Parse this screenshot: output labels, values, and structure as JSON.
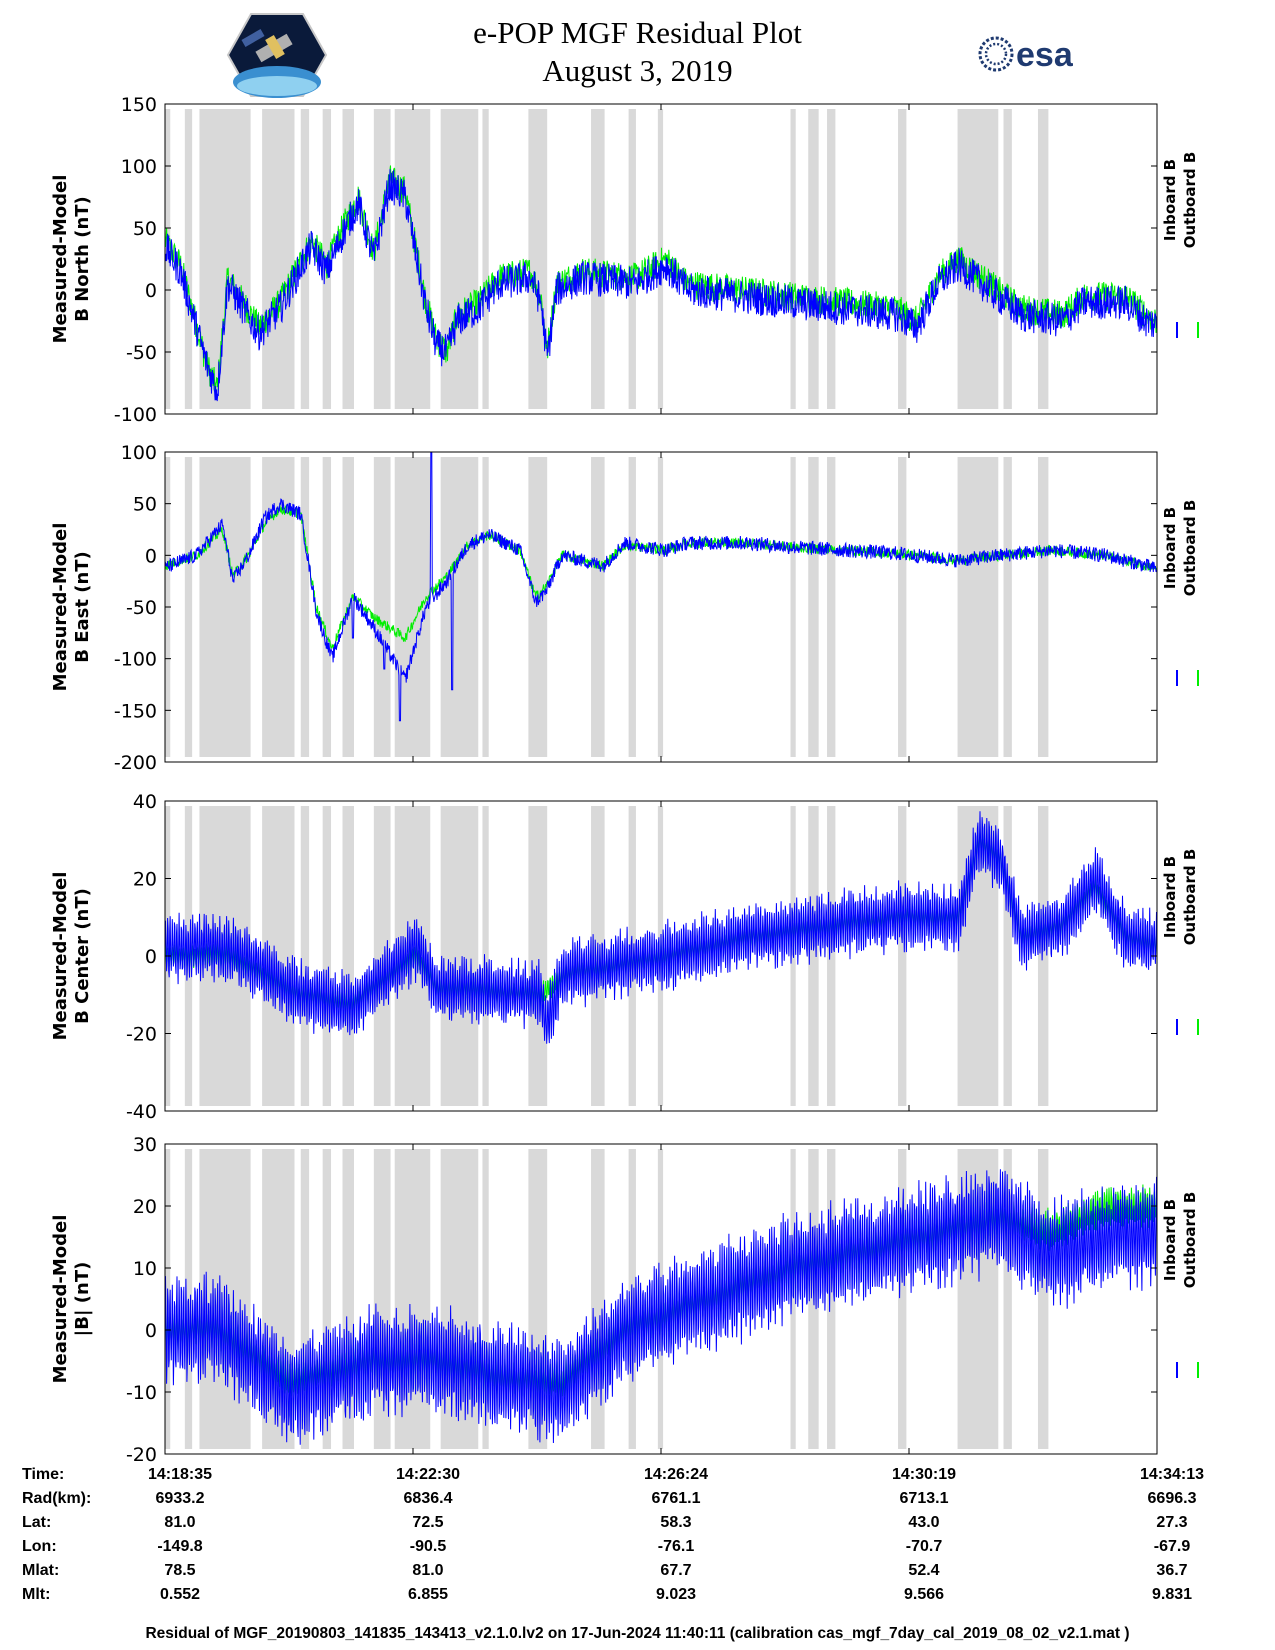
{
  "title": {
    "line1": "e-POP MGF Residual Plot",
    "line2": "August 3, 2019"
  },
  "logos": {
    "left": "cassiope-mission-logo",
    "right_text": "esa"
  },
  "colors": {
    "inboard": "#0000ff",
    "outboard": "#00ee00",
    "shade": "#d9d9d9"
  },
  "chart_data": [
    {
      "type": "line",
      "name": "north",
      "ylabel_line1": "Measured-Model",
      "ylabel_line2": "B North (nT)",
      "ylim": [
        -100,
        150
      ],
      "yticks": [
        "150",
        "100",
        "50",
        "0",
        "-50",
        "-100"
      ],
      "legend": [
        "Inboard B",
        "Outboard B"
      ],
      "series": [
        {
          "name": "Outboard B",
          "color": "#00ee00",
          "anchors": [
            [
              0,
              40
            ],
            [
              15,
              20
            ],
            [
              40,
              -60
            ],
            [
              50,
              -80
            ],
            [
              60,
              10
            ],
            [
              90,
              -30
            ],
            [
              110,
              -10
            ],
            [
              140,
              40
            ],
            [
              155,
              20
            ],
            [
              170,
              50
            ],
            [
              185,
              75
            ],
            [
              200,
              30
            ],
            [
              215,
              90
            ],
            [
              230,
              80
            ],
            [
              250,
              -10
            ],
            [
              260,
              -40
            ],
            [
              270,
              -50
            ],
            [
              280,
              -20
            ],
            [
              300,
              -10
            ],
            [
              320,
              10
            ],
            [
              350,
              15
            ],
            [
              360,
              -5
            ],
            [
              366,
              -50
            ],
            [
              375,
              5
            ],
            [
              400,
              15
            ],
            [
              450,
              10
            ],
            [
              480,
              25
            ],
            [
              500,
              5
            ],
            [
              600,
              -5
            ],
            [
              700,
              -15
            ],
            [
              720,
              -25
            ],
            [
              740,
              10
            ],
            [
              760,
              25
            ],
            [
              790,
              5
            ],
            [
              820,
              -15
            ],
            [
              860,
              -20
            ],
            [
              880,
              -5
            ],
            [
              920,
              -5
            ],
            [
              940,
              -20
            ],
            [
              950,
              -25
            ]
          ],
          "noise": 12
        },
        {
          "name": "Inboard B",
          "color": "#0000ff",
          "anchors": [
            [
              0,
              35
            ],
            [
              15,
              15
            ],
            [
              40,
              -60
            ],
            [
              50,
              -82
            ],
            [
              60,
              5
            ],
            [
              90,
              -35
            ],
            [
              110,
              -15
            ],
            [
              140,
              35
            ],
            [
              155,
              15
            ],
            [
              170,
              45
            ],
            [
              185,
              70
            ],
            [
              200,
              25
            ],
            [
              215,
              85
            ],
            [
              230,
              75
            ],
            [
              250,
              -15
            ],
            [
              260,
              -45
            ],
            [
              270,
              -50
            ],
            [
              280,
              -25
            ],
            [
              300,
              -15
            ],
            [
              320,
              5
            ],
            [
              350,
              10
            ],
            [
              360,
              -10
            ],
            [
              366,
              -55
            ],
            [
              375,
              0
            ],
            [
              400,
              10
            ],
            [
              450,
              5
            ],
            [
              480,
              20
            ],
            [
              500,
              0
            ],
            [
              600,
              -10
            ],
            [
              700,
              -20
            ],
            [
              720,
              -30
            ],
            [
              740,
              5
            ],
            [
              760,
              20
            ],
            [
              790,
              0
            ],
            [
              820,
              -20
            ],
            [
              860,
              -25
            ],
            [
              880,
              -10
            ],
            [
              920,
              -10
            ],
            [
              940,
              -25
            ],
            [
              950,
              -28
            ]
          ],
          "noise": 14
        }
      ]
    },
    {
      "type": "line",
      "name": "east",
      "ylabel_line1": "Measured-Model",
      "ylabel_line2": "B East (nT)",
      "ylim": [
        -200,
        100
      ],
      "yticks": [
        "100",
        "50",
        "0",
        "-50",
        "-100",
        "-150",
        "-200"
      ],
      "legend": [
        "Inboard B",
        "Outboard B"
      ],
      "series": [
        {
          "name": "Outboard B",
          "color": "#00ee00",
          "anchors": [
            [
              0,
              -10
            ],
            [
              30,
              0
            ],
            [
              55,
              25
            ],
            [
              65,
              -20
            ],
            [
              80,
              0
            ],
            [
              95,
              30
            ],
            [
              110,
              45
            ],
            [
              130,
              40
            ],
            [
              145,
              -50
            ],
            [
              160,
              -90
            ],
            [
              180,
              -40
            ],
            [
              200,
              -60
            ],
            [
              230,
              -80
            ],
            [
              250,
              -40
            ],
            [
              270,
              -20
            ],
            [
              290,
              10
            ],
            [
              310,
              20
            ],
            [
              340,
              5
            ],
            [
              355,
              -40
            ],
            [
              365,
              -30
            ],
            [
              380,
              0
            ],
            [
              420,
              -10
            ],
            [
              440,
              10
            ],
            [
              480,
              5
            ],
            [
              500,
              12
            ],
            [
              560,
              12
            ],
            [
              600,
              8
            ],
            [
              700,
              2
            ],
            [
              760,
              -5
            ],
            [
              800,
              0
            ],
            [
              850,
              5
            ],
            [
              900,
              0
            ],
            [
              940,
              -10
            ],
            [
              950,
              -12
            ]
          ],
          "noise": 5
        },
        {
          "name": "Inboard B",
          "color": "#0000ff",
          "anchors": [
            [
              0,
              -12
            ],
            [
              30,
              0
            ],
            [
              55,
              30
            ],
            [
              65,
              -25
            ],
            [
              80,
              0
            ],
            [
              95,
              35
            ],
            [
              110,
              50
            ],
            [
              130,
              40
            ],
            [
              145,
              -55
            ],
            [
              160,
              -100
            ],
            [
              180,
              -40
            ],
            [
              200,
              -70
            ],
            [
              230,
              -120
            ],
            [
              250,
              -50
            ],
            [
              270,
              -25
            ],
            [
              290,
              10
            ],
            [
              310,
              20
            ],
            [
              340,
              5
            ],
            [
              355,
              -45
            ],
            [
              365,
              -35
            ],
            [
              380,
              0
            ],
            [
              420,
              -10
            ],
            [
              440,
              12
            ],
            [
              480,
              5
            ],
            [
              500,
              12
            ],
            [
              560,
              12
            ],
            [
              600,
              8
            ],
            [
              700,
              2
            ],
            [
              760,
              -5
            ],
            [
              800,
              0
            ],
            [
              850,
              5
            ],
            [
              900,
              0
            ],
            [
              940,
              -10
            ],
            [
              950,
              -14
            ]
          ],
          "noise": 7,
          "spikes": [
            [
              225,
              -160
            ],
            [
              255,
              100
            ],
            [
              275,
              -130
            ],
            [
              180,
              -80
            ],
            [
              210,
              -110
            ]
          ]
        }
      ]
    },
    {
      "type": "line",
      "name": "center",
      "ylabel_line1": "Measured-Model",
      "ylabel_line2": "B Center (nT)",
      "ylim": [
        -40,
        40
      ],
      "yticks": [
        "40",
        "20",
        "0",
        "-20",
        "-40"
      ],
      "legend": [
        "Inboard B",
        "Outboard B"
      ],
      "series": [
        {
          "name": "Outboard B",
          "color": "#00ee00",
          "anchors": [
            [
              0,
              0
            ],
            [
              60,
              0
            ],
            [
              130,
              -10
            ],
            [
              180,
              -12
            ],
            [
              240,
              0
            ],
            [
              260,
              -8
            ],
            [
              360,
              -10
            ],
            [
              380,
              -5
            ],
            [
              480,
              0
            ],
            [
              560,
              5
            ],
            [
              700,
              10
            ],
            [
              760,
              10
            ],
            [
              780,
              30
            ],
            [
              800,
              25
            ],
            [
              820,
              5
            ],
            [
              860,
              8
            ],
            [
              890,
              18
            ],
            [
              920,
              5
            ],
            [
              950,
              3
            ]
          ],
          "noise": 3
        },
        {
          "name": "Inboard B",
          "color": "#0000ff",
          "anchors": [
            [
              0,
              2
            ],
            [
              60,
              2
            ],
            [
              130,
              -10
            ],
            [
              180,
              -13
            ],
            [
              240,
              2
            ],
            [
              260,
              -8
            ],
            [
              360,
              -10
            ],
            [
              365,
              -18
            ],
            [
              380,
              -5
            ],
            [
              480,
              0
            ],
            [
              560,
              5
            ],
            [
              700,
              10
            ],
            [
              760,
              10
            ],
            [
              780,
              30
            ],
            [
              800,
              25
            ],
            [
              820,
              5
            ],
            [
              860,
              8
            ],
            [
              890,
              20
            ],
            [
              920,
              5
            ],
            [
              950,
              3
            ]
          ],
          "noise": 8
        }
      ]
    },
    {
      "type": "line",
      "name": "total",
      "ylabel_line1": "Measured-Model",
      "ylabel_line2": "|B| (nT)",
      "ylim": [
        -20,
        30
      ],
      "yticks": [
        "30",
        "20",
        "10",
        "0",
        "-10",
        "-20"
      ],
      "legend": [
        "Inboard B",
        "Outboard B"
      ],
      "series": [
        {
          "name": "Outboard B",
          "color": "#00ee00",
          "anchors": [
            [
              0,
              0
            ],
            [
              50,
              0
            ],
            [
              120,
              -8
            ],
            [
              200,
              -5
            ],
            [
              260,
              -5
            ],
            [
              330,
              -8
            ],
            [
              380,
              -8
            ],
            [
              440,
              0
            ],
            [
              520,
              5
            ],
            [
              600,
              10
            ],
            [
              700,
              14
            ],
            [
              800,
              18
            ],
            [
              850,
              16
            ],
            [
              900,
              20
            ],
            [
              950,
              20
            ]
          ],
          "noise": 3
        },
        {
          "name": "Inboard B",
          "color": "#0000ff",
          "anchors": [
            [
              0,
              0
            ],
            [
              50,
              0
            ],
            [
              120,
              -10
            ],
            [
              200,
              -5
            ],
            [
              260,
              -5
            ],
            [
              330,
              -8
            ],
            [
              380,
              -10
            ],
            [
              440,
              0
            ],
            [
              520,
              5
            ],
            [
              600,
              10
            ],
            [
              700,
              14
            ],
            [
              800,
              18
            ],
            [
              850,
              12
            ],
            [
              900,
              15
            ],
            [
              950,
              16
            ]
          ],
          "noise": 8
        }
      ]
    }
  ],
  "shade_bands": [
    [
      0,
      5
    ],
    [
      19,
      26
    ],
    [
      33,
      82
    ],
    [
      93,
      124
    ],
    [
      130,
      138
    ],
    [
      151,
      159
    ],
    [
      170,
      181
    ],
    [
      200,
      216
    ],
    [
      220,
      254
    ],
    [
      264,
      300
    ],
    [
      304,
      310
    ],
    [
      348,
      366
    ],
    [
      408,
      421
    ],
    [
      444,
      451
    ],
    [
      472,
      477
    ],
    [
      599,
      604
    ],
    [
      616,
      626
    ],
    [
      634,
      642
    ],
    [
      702,
      710
    ],
    [
      759,
      798
    ],
    [
      803,
      811
    ],
    [
      836,
      846
    ]
  ],
  "time_axis": {
    "labels": [
      {
        "label": "Time:",
        "values": [
          "14:18:35",
          "14:22:30",
          "14:26:24",
          "14:30:19",
          "14:34:13"
        ]
      },
      {
        "label": "Rad(km):",
        "values": [
          "6933.2",
          "6836.4",
          "6761.1",
          "6713.1",
          "6696.3"
        ]
      },
      {
        "label": "Lat:",
        "values": [
          "81.0",
          "72.5",
          "58.3",
          "43.0",
          "27.3"
        ]
      },
      {
        "label": "Lon:",
        "values": [
          "-149.8",
          "-90.5",
          "-76.1",
          "-70.7",
          "-67.9"
        ]
      },
      {
        "label": "Mlat:",
        "values": [
          "78.5",
          "81.0",
          "67.7",
          "52.4",
          "36.7"
        ]
      },
      {
        "label": "Mlt:",
        "values": [
          "0.552",
          "6.855",
          "9.023",
          "9.566",
          "9.831"
        ]
      }
    ]
  },
  "footer": "Residual of MGF_20190803_141835_143413_v2.1.0.lv2 on 17-Jun-2024 11:40:11 (calibration cas_mgf_7day_cal_2019_08_02_v2.1.mat )"
}
